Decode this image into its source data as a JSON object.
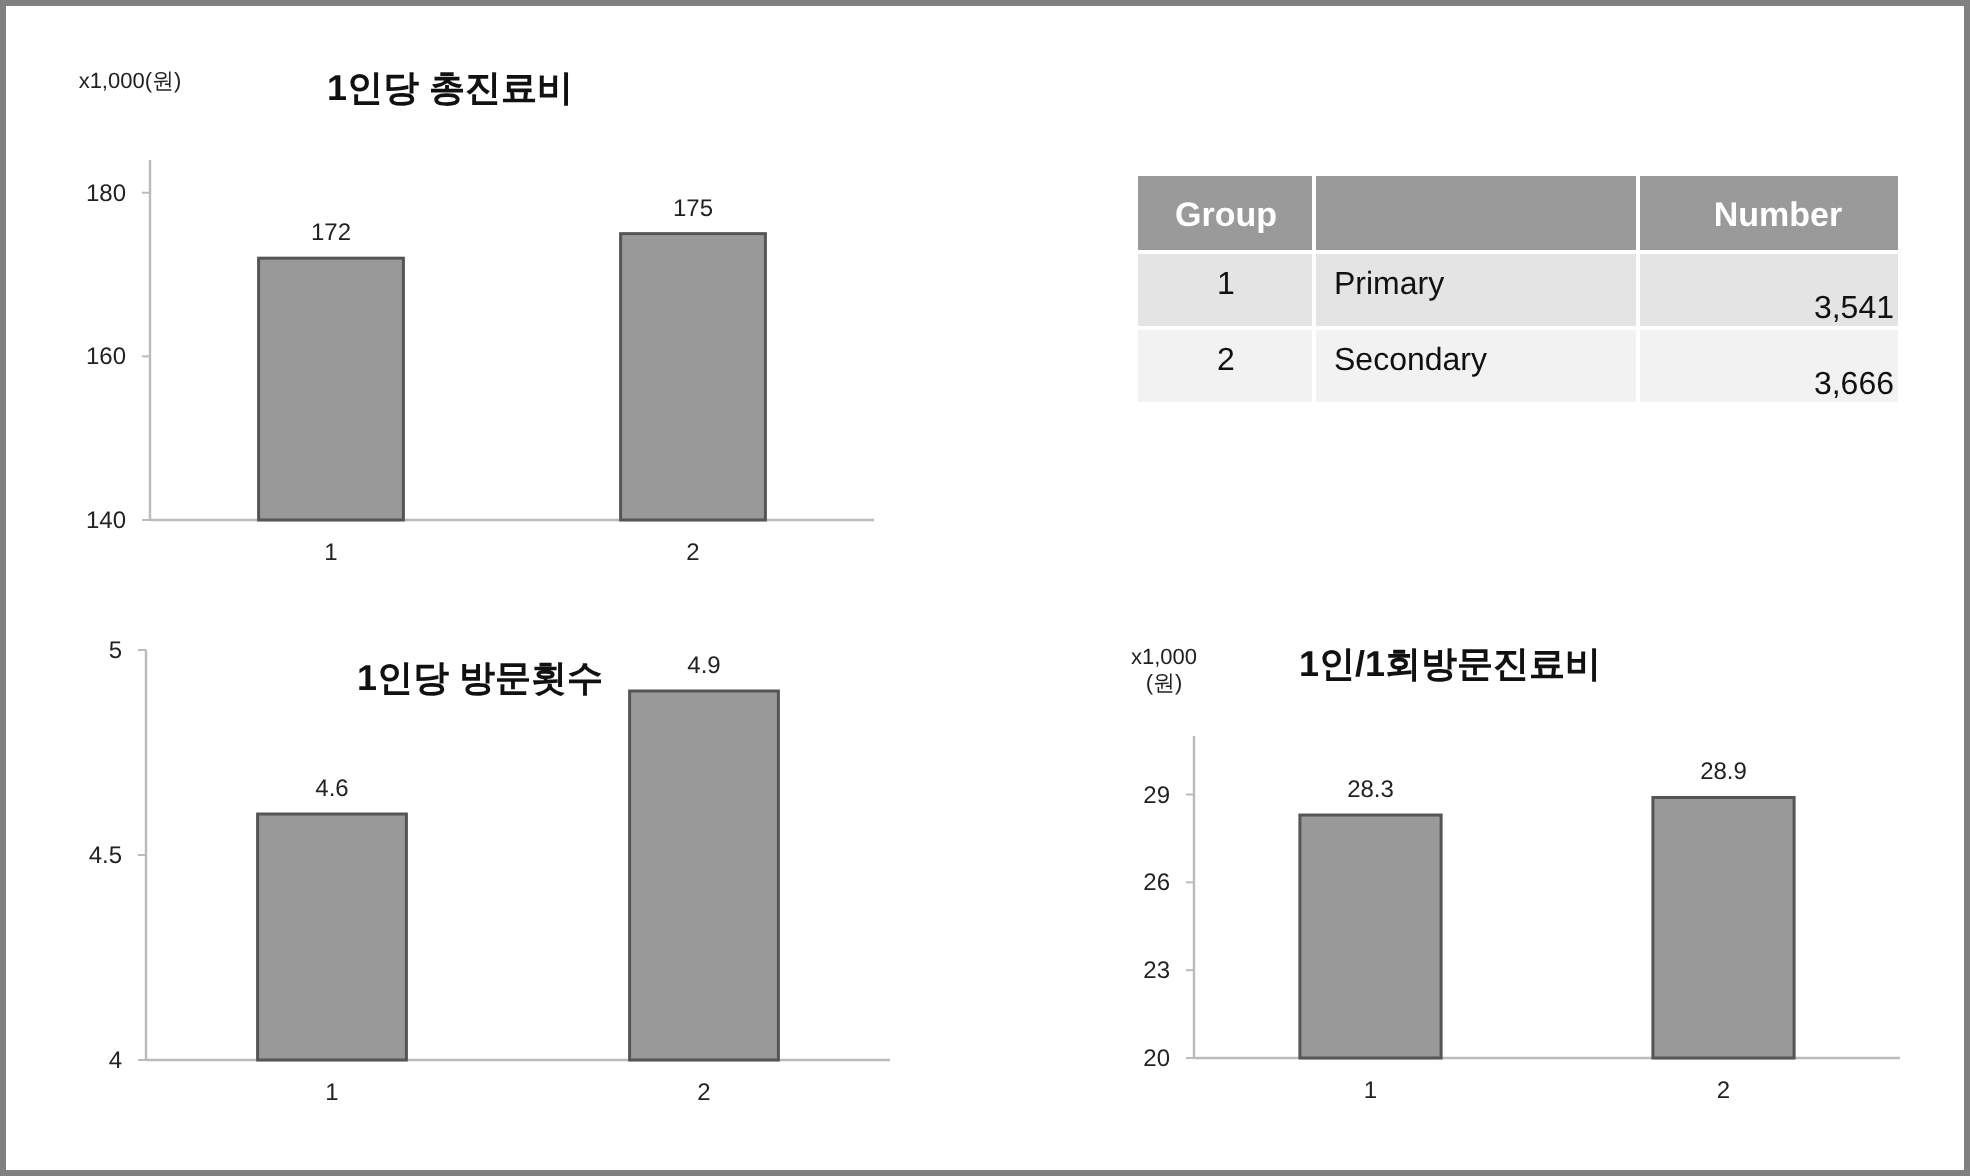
{
  "chart_data": [
    {
      "type": "bar",
      "title": "1인당 총진료비",
      "ylabel": "x1,000(원)",
      "categories": [
        "1",
        "2"
      ],
      "values": [
        172,
        175
      ],
      "color": "#999999",
      "ylim": [
        140,
        184
      ],
      "yticks": [
        140,
        160,
        180
      ],
      "data_labels": true,
      "grid": false
    },
    {
      "type": "other",
      "annotations": [
        "Group",
        "Number",
        "1",
        "Primary",
        "3,541",
        "2",
        "Secondary",
        "3,666"
      ]
    },
    {
      "type": "bar",
      "title": "1인당 방문횟수",
      "categories": [
        "1",
        "2"
      ],
      "values": [
        4.6,
        4.9
      ],
      "color": "#999999",
      "ylim": [
        4,
        5
      ],
      "yticks": [
        4,
        4.5,
        5
      ],
      "data_labels": true,
      "grid": false
    },
    {
      "type": "bar",
      "title": "1인/1회방문진료비",
      "ylabel": "x1,000 (원)",
      "categories": [
        "1",
        "2"
      ],
      "values": [
        28.3,
        28.9
      ],
      "color": "#999999",
      "ylim": [
        20,
        31
      ],
      "yticks": [
        20,
        23,
        26,
        29
      ],
      "data_labels": true,
      "grid": false
    }
  ]
}
